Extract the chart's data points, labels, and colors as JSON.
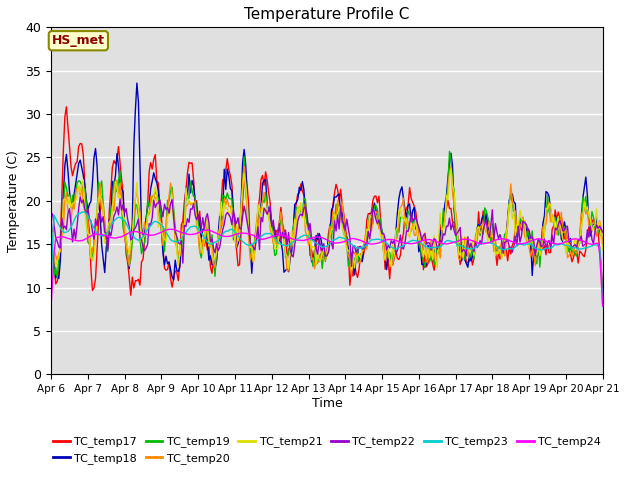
{
  "title": "Temperature Profile C",
  "xlabel": "Time",
  "ylabel": "Temperature (C)",
  "ylim": [
    0,
    40
  ],
  "xlim": [
    0,
    360
  ],
  "annotation": "HS_met",
  "bg_color": "#e0e0e0",
  "series_colors": {
    "TC_temp17": "#ff0000",
    "TC_temp18": "#0000bb",
    "TC_temp19": "#00bb00",
    "TC_temp20": "#ff8800",
    "TC_temp21": "#dddd00",
    "TC_temp22": "#9900cc",
    "TC_temp23": "#00cccc",
    "TC_temp24": "#ff00ff"
  },
  "x_tick_labels": [
    "Apr 6",
    "Apr 7",
    "Apr 8",
    "Apr 9",
    "Apr 10",
    "Apr 11",
    "Apr 12",
    "Apr 13",
    "Apr 14",
    "Apr 15",
    "Apr 16",
    "Apr 17",
    "Apr 18",
    "Apr 19",
    "Apr 20",
    "Apr 21"
  ],
  "x_tick_positions": [
    0,
    24,
    48,
    72,
    96,
    120,
    144,
    168,
    192,
    216,
    240,
    264,
    288,
    312,
    336,
    360
  ],
  "yticks": [
    0,
    5,
    10,
    15,
    20,
    25,
    30,
    35,
    40
  ]
}
